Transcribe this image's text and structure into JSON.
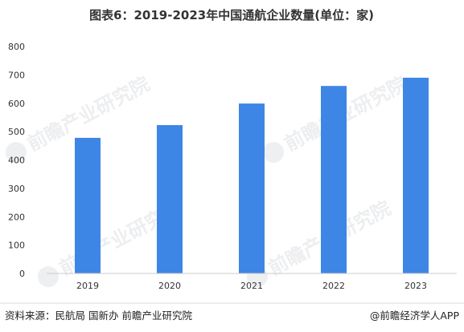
{
  "chart_data": {
    "type": "bar",
    "title": "图表6：2019-2023年中国通航企业数量(单位：家)",
    "categories": [
      "2019",
      "2020",
      "2021",
      "2022",
      "2023"
    ],
    "values": [
      478,
      523,
      599,
      661,
      690
    ],
    "ylim": [
      0,
      800
    ],
    "yticks": [
      0,
      100,
      200,
      300,
      400,
      500,
      600,
      700,
      800
    ],
    "bar_color": "#3d86e5",
    "grid": false,
    "legend": "none"
  },
  "footer": {
    "source": "资料来源：民航局 国新办 前瞻产业研究院",
    "credit": "@前瞻经济学人APP"
  },
  "watermark": "前瞻产业研究院"
}
